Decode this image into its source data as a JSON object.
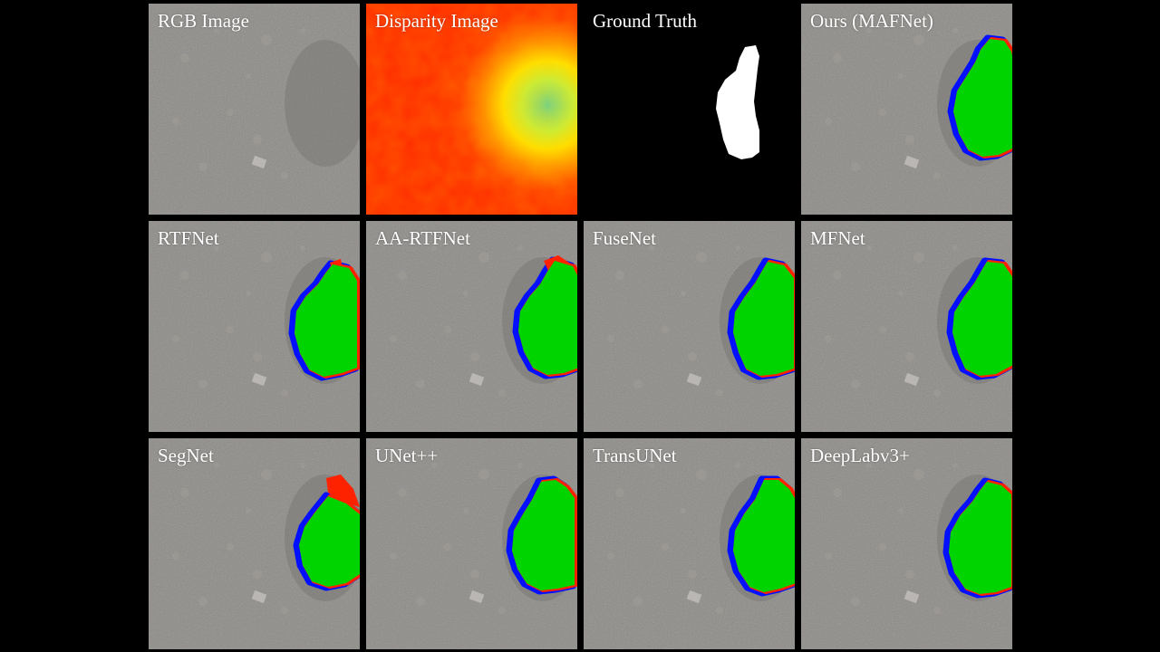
{
  "figure": {
    "panels": [
      {
        "id": "rgb",
        "label": "RGB Image",
        "kind": "rgb"
      },
      {
        "id": "disparity",
        "label": "Disparity Image",
        "kind": "disparity"
      },
      {
        "id": "ground-truth",
        "label": "Ground Truth",
        "kind": "gt"
      },
      {
        "id": "mafnet",
        "label": "Ours (MAFNet)",
        "kind": "pred"
      },
      {
        "id": "rtfnet",
        "label": "RTFNet",
        "kind": "pred"
      },
      {
        "id": "aa-rtfnet",
        "label": "AA-RTFNet",
        "kind": "pred"
      },
      {
        "id": "fusenet",
        "label": "FuseNet",
        "kind": "pred"
      },
      {
        "id": "mfnet",
        "label": "MFNet",
        "kind": "pred"
      },
      {
        "id": "segnet",
        "label": "SegNet",
        "kind": "pred"
      },
      {
        "id": "unetpp",
        "label": "UNet++",
        "kind": "pred"
      },
      {
        "id": "transunet",
        "label": "TransUNet",
        "kind": "pred"
      },
      {
        "id": "deeplabv3plus",
        "label": "DeepLabv3+",
        "kind": "pred"
      }
    ]
  },
  "colors": {
    "background": "#000000",
    "label": "#ffffff",
    "true_positive": "#00d400",
    "false_positive": "#ff2200",
    "false_negative": "#0010ff",
    "ground_truth_mask": "#ffffff",
    "ground_truth_bg": "#000000",
    "road_texture": "#8c8a86"
  }
}
